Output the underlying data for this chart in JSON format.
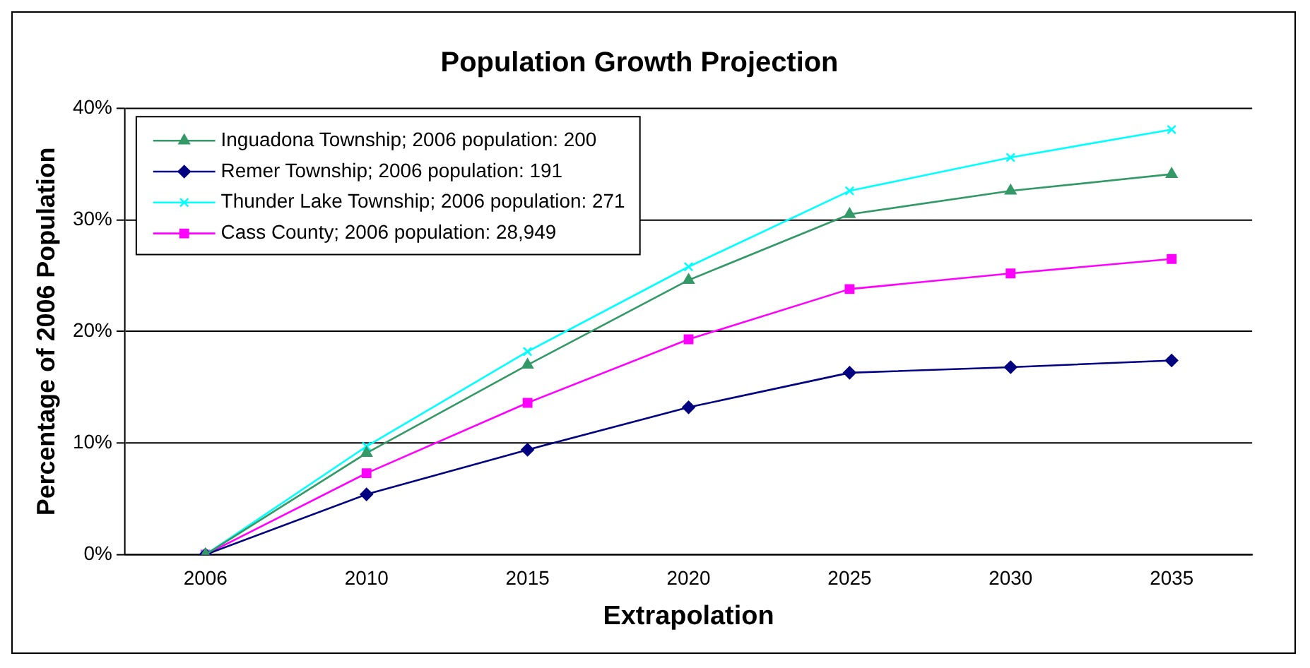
{
  "chart_data": {
    "type": "line",
    "title": "Population Growth Projection",
    "xlabel": "Extrapolation",
    "ylabel": "Percentage of 2006 Population",
    "categories": [
      "2006",
      "2010",
      "2015",
      "2020",
      "2025",
      "2030",
      "2035"
    ],
    "series": [
      {
        "name": "Inguadona Township; 2006 population: 200",
        "color": "#339966",
        "marker": "triangle",
        "values": [
          0,
          9.1,
          17.0,
          24.6,
          30.5,
          32.6,
          34.1
        ]
      },
      {
        "name": "Remer Township; 2006 population: 191",
        "color": "#000080",
        "marker": "diamond",
        "values": [
          0,
          5.4,
          9.4,
          13.2,
          16.3,
          16.8,
          17.4
        ]
      },
      {
        "name": "Thunder Lake Township; 2006 population: 271",
        "color": "#00ffff",
        "marker": "cross",
        "values": [
          0,
          9.7,
          18.2,
          25.8,
          32.6,
          35.6,
          38.1
        ]
      },
      {
        "name": "Cass County; 2006 population: 28,949",
        "color": "#ff00ff",
        "marker": "square",
        "values": [
          0,
          7.3,
          13.6,
          19.3,
          23.8,
          25.2,
          26.5
        ]
      }
    ],
    "ylim": [
      0,
      40
    ],
    "yticks": [
      {
        "value": 0,
        "label": "0%"
      },
      {
        "value": 10,
        "label": "10%"
      },
      {
        "value": 20,
        "label": "20%"
      },
      {
        "value": 30,
        "label": "30%"
      },
      {
        "value": 40,
        "label": "40%"
      }
    ],
    "grid": "y",
    "legend": "top left"
  }
}
